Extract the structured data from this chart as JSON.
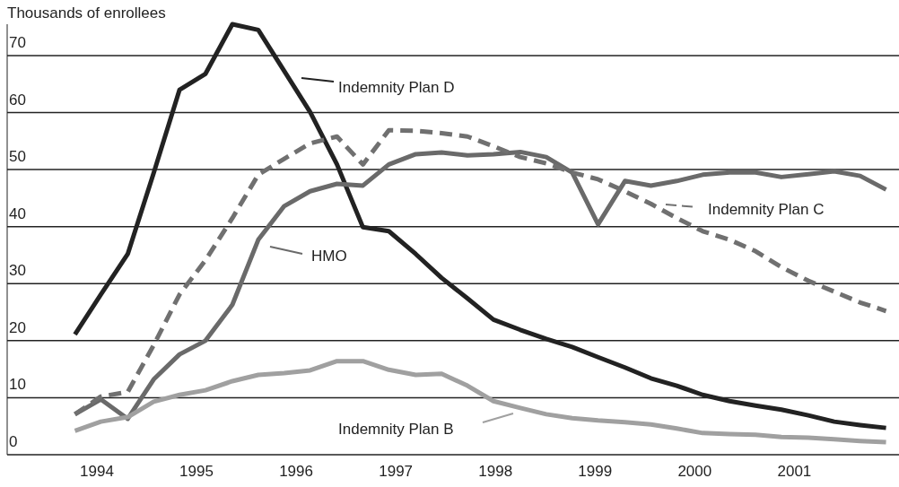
{
  "chart_data": {
    "type": "line",
    "ylabel": "Thousands of enrollees",
    "x": [
      1993.78,
      1994.04,
      1994.31,
      1994.57,
      1994.83,
      1995.09,
      1995.36,
      1995.62,
      1995.88,
      1996.14,
      1996.41,
      1996.67,
      1996.93,
      1997.2,
      1997.46,
      1997.72,
      1997.98,
      1998.25,
      1998.51,
      1998.77,
      1999.03,
      1999.3,
      1999.56,
      1999.82,
      2000.08,
      2000.35,
      2000.61,
      2000.87,
      2001.14,
      2001.4,
      2001.66,
      2001.92
    ],
    "series": [
      {
        "name": "Indemnity Plan D",
        "color": "#222222",
        "line_style": "solid",
        "values": [
          21.1,
          28.1,
          35.2,
          49.4,
          64.0,
          66.8,
          75.5,
          74.5,
          67.3,
          60.1,
          50.9,
          39.9,
          39.2,
          35.2,
          31.0,
          27.4,
          23.7,
          21.9,
          20.3,
          18.9,
          17.1,
          15.3,
          13.4,
          12.1,
          10.5,
          9.4,
          8.6,
          7.9,
          6.9,
          5.8,
          5.2,
          4.7
        ]
      },
      {
        "name": "HMO",
        "color": "#6a6a6a",
        "line_style": "solid",
        "values": [
          7.1,
          9.7,
          6.3,
          13.2,
          17.6,
          20.0,
          26.3,
          37.7,
          43.6,
          46.2,
          47.5,
          47.2,
          50.9,
          52.7,
          53.0,
          52.5,
          52.7,
          53.1,
          52.2,
          49.5,
          40.4,
          48.0,
          47.2,
          48.0,
          49.1,
          49.5,
          49.5,
          48.7,
          49.2,
          49.7,
          48.9,
          46.5
        ]
      },
      {
        "name": "Indemnity Plan C",
        "color": "#707070",
        "line_style": "dashed",
        "values": [
          7.1,
          10.2,
          11.0,
          19.2,
          28.1,
          34.1,
          41.5,
          49.1,
          51.9,
          54.6,
          55.8,
          50.9,
          56.9,
          56.8,
          56.4,
          55.8,
          54.1,
          52.2,
          51.1,
          49.5,
          48.3,
          46.2,
          44.0,
          41.5,
          39.2,
          37.7,
          35.7,
          32.9,
          30.5,
          28.6,
          26.7,
          25.2
        ]
      },
      {
        "name": "Indemnity Plan B",
        "color": "#a0a0a0",
        "line_style": "solid",
        "values": [
          4.2,
          5.8,
          6.6,
          9.3,
          10.5,
          11.3,
          12.9,
          14.0,
          14.3,
          14.8,
          16.4,
          16.4,
          14.9,
          14.0,
          14.2,
          12.1,
          9.4,
          8.2,
          7.1,
          6.4,
          6.0,
          5.7,
          5.3,
          4.6,
          3.8,
          3.6,
          3.5,
          3.1,
          3.0,
          2.7,
          2.4,
          2.2
        ]
      }
    ],
    "xlim": [
      1993.1,
      2002.05
    ],
    "xticks": [
      1994,
      1995,
      1996,
      1997,
      1998,
      1999,
      2000,
      2001
    ],
    "ylim": [
      0,
      75.5
    ],
    "yticks": [
      0,
      10,
      20,
      30,
      40,
      50,
      60,
      70
    ],
    "grid": "y",
    "legend": "top right",
    "marker": "none"
  }
}
